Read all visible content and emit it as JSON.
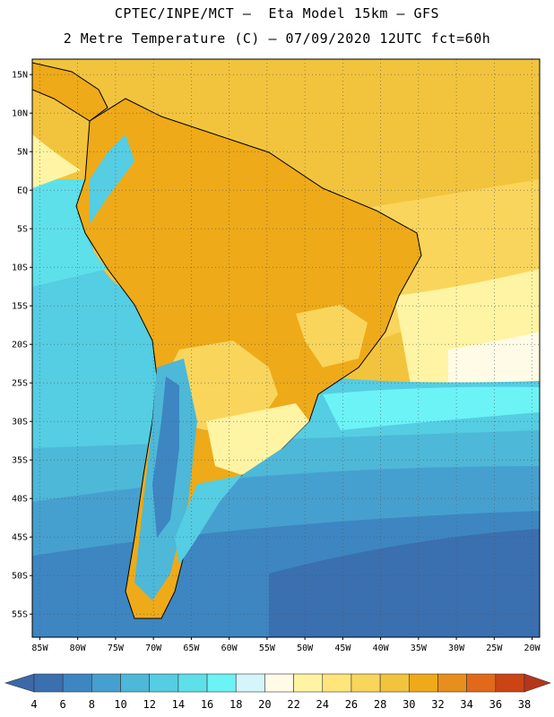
{
  "header": {
    "line1": "CPTEC/INPE/MCT –  Eta Model 15km – GFS",
    "line2": "2 Metre Temperature (C) – 07/09/2020 12UTC fct=60h"
  },
  "map": {
    "lon_range": [
      -86,
      -19
    ],
    "lat_range": [
      -58,
      17
    ],
    "lat_ticks": [
      {
        "value": 15,
        "label": "15N"
      },
      {
        "value": 10,
        "label": "10N"
      },
      {
        "value": 5,
        "label": "5N"
      },
      {
        "value": 0,
        "label": "EQ"
      },
      {
        "value": -5,
        "label": "5S"
      },
      {
        "value": -10,
        "label": "10S"
      },
      {
        "value": -15,
        "label": "15S"
      },
      {
        "value": -20,
        "label": "20S"
      },
      {
        "value": -25,
        "label": "25S"
      },
      {
        "value": -30,
        "label": "30S"
      },
      {
        "value": -35,
        "label": "35S"
      },
      {
        "value": -40,
        "label": "40S"
      },
      {
        "value": -45,
        "label": "45S"
      },
      {
        "value": -50,
        "label": "50S"
      },
      {
        "value": -55,
        "label": "55S"
      }
    ],
    "lon_ticks": [
      {
        "value": -85,
        "label": "85W"
      },
      {
        "value": -80,
        "label": "80W"
      },
      {
        "value": -75,
        "label": "75W"
      },
      {
        "value": -70,
        "label": "70W"
      },
      {
        "value": -65,
        "label": "65W"
      },
      {
        "value": -60,
        "label": "60W"
      },
      {
        "value": -55,
        "label": "55W"
      },
      {
        "value": -50,
        "label": "50W"
      },
      {
        "value": -45,
        "label": "45W"
      },
      {
        "value": -40,
        "label": "40W"
      },
      {
        "value": -35,
        "label": "35W"
      },
      {
        "value": -30,
        "label": "30W"
      },
      {
        "value": -25,
        "label": "25W"
      },
      {
        "value": -20,
        "label": "20W"
      }
    ]
  },
  "colorbar": {
    "labels": [
      "4",
      "6",
      "8",
      "10",
      "12",
      "14",
      "16",
      "18",
      "20",
      "22",
      "24",
      "26",
      "28",
      "30",
      "32",
      "34",
      "36",
      "38"
    ],
    "colors": [
      "#3a6fb0",
      "#3d86c2",
      "#46a0cf",
      "#4db8d8",
      "#55cde2",
      "#5ee0ea",
      "#6cf3f6",
      "#d4f6fb",
      "#fffbe6",
      "#fff4a3",
      "#ffe57a",
      "#f9d55c",
      "#f2c43d",
      "#eeaa18",
      "#e88e1c",
      "#e2691a",
      "#cc4414"
    ],
    "low_color": "#3c68a8",
    "high_color": "#b5361a"
  }
}
